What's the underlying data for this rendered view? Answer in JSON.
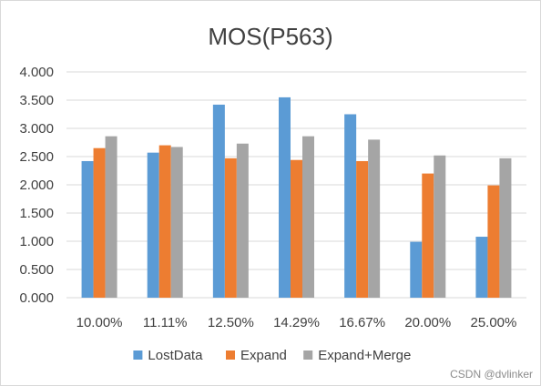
{
  "chart_data": {
    "type": "bar",
    "title": "MOS(P563)",
    "categories": [
      "10.00%",
      "11.11%",
      "12.50%",
      "14.29%",
      "16.67%",
      "20.00%",
      "25.00%"
    ],
    "series": [
      {
        "name": "LostData",
        "color": "#5b9bd5",
        "values": [
          2.42,
          2.57,
          3.42,
          3.55,
          3.25,
          0.99,
          1.08
        ]
      },
      {
        "name": "Expand",
        "color": "#ed7d31",
        "values": [
          2.65,
          2.7,
          2.47,
          2.44,
          2.42,
          2.2,
          1.99
        ]
      },
      {
        "name": "Expand+Merge",
        "color": "#a5a5a5",
        "values": [
          2.86,
          2.67,
          2.73,
          2.86,
          2.8,
          2.52,
          2.47
        ]
      }
    ],
    "ylim": [
      0,
      4
    ],
    "yticks": [
      "0.000",
      "0.500",
      "1.000",
      "1.500",
      "2.000",
      "2.500",
      "3.000",
      "3.500",
      "4.000"
    ],
    "grid": true,
    "legend": "bottom",
    "xlabel": "",
    "ylabel": ""
  },
  "watermark": "CSDN @dvlinker"
}
